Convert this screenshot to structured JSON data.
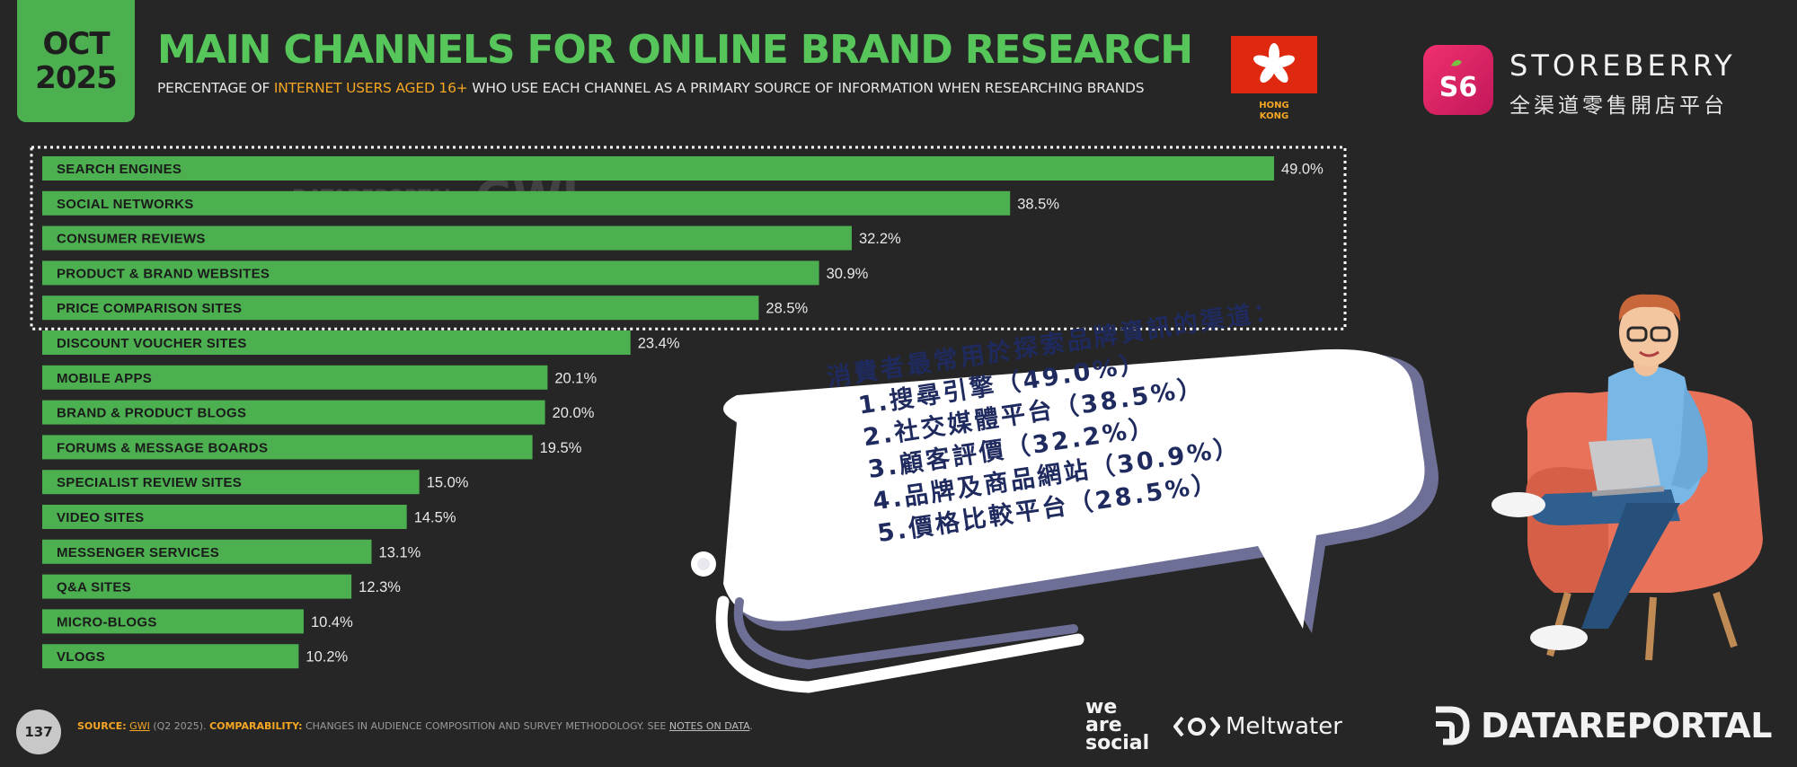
{
  "header": {
    "date_month": "OCT",
    "date_year": "2025",
    "title": "MAIN CHANNELS FOR ONLINE BRAND RESEARCH",
    "subtitle_pre": "PERCENTAGE OF ",
    "subtitle_highlight": "INTERNET USERS AGED 16+",
    "subtitle_post": " WHO USE EACH CHANNEL AS A PRIMARY SOURCE OF INFORMATION WHEN RESEARCHING BRANDS",
    "flag_label_line1": "HONG",
    "flag_label_line2": "KONG"
  },
  "brand": {
    "name": "STOREBERRY",
    "tagline": "全渠道零售開店平台",
    "logo_text": "S6"
  },
  "watermark": {
    "left": "DATAREPORTAL",
    "right": "GWI."
  },
  "chart_data": {
    "type": "bar",
    "orientation": "horizontal",
    "title": "MAIN CHANNELS FOR ONLINE BRAND RESEARCH",
    "categories": [
      "SEARCH ENGINES",
      "SOCIAL NETWORKS",
      "CONSUMER REVIEWS",
      "PRODUCT & BRAND WEBSITES",
      "PRICE COMPARISON SITES",
      "DISCOUNT VOUCHER SITES",
      "MOBILE APPS",
      "BRAND & PRODUCT BLOGS",
      "FORUMS & MESSAGE BOARDS",
      "SPECIALIST REVIEW SITES",
      "VIDEO SITES",
      "MESSENGER SERVICES",
      "Q&A SITES",
      "MICRO-BLOGS",
      "VLOGS"
    ],
    "values": [
      49.0,
      38.5,
      32.2,
      30.9,
      28.5,
      23.4,
      20.1,
      20.0,
      19.5,
      15.0,
      14.5,
      13.1,
      12.3,
      10.4,
      10.2
    ],
    "value_labels": [
      "49.0%",
      "38.5%",
      "32.2%",
      "30.9%",
      "28.5%",
      "23.4%",
      "20.1%",
      "20.0%",
      "19.5%",
      "15.0%",
      "14.5%",
      "13.1%",
      "12.3%",
      "10.4%",
      "10.2%"
    ],
    "highlighted_top": 5,
    "bar_color": "#4caf50",
    "highlight_box": "dotted white",
    "grid": false,
    "legend": "none"
  },
  "callout": {
    "heading": "消費者最常用於探索品牌資訊的渠道：",
    "items": [
      "1.搜尋引擎（49.0%）",
      "2.社交媒體平台（38.5%）",
      "3.顧客評價（32.2%）",
      "4.品牌及商品網站（30.9%）",
      "5.價格比較平台（28.5%）"
    ]
  },
  "footer": {
    "page_number": "137",
    "source_label": "SOURCE:",
    "source_link": "GWI",
    "source_text": " (Q2 2025). ",
    "comparability_label": "COMPARABILITY:",
    "comparability_text": " CHANGES IN AUDIENCE COMPOSITION AND SURVEY METHODOLOGY. SEE ",
    "notes_link": "NOTES ON DATA",
    "notes_end": ".",
    "partner1_l1": "we",
    "partner1_l2": "are",
    "partner1_l3": "social",
    "partner2": "Meltwater",
    "partner3": "DATAREPORTAL"
  },
  "colors": {
    "background": "#262626",
    "bar": "#4caf50",
    "title": "#56c65a",
    "accent": "#f5a623",
    "callout_text": "#1f2a5e",
    "flag": "#de2910",
    "brand": "#e91e63"
  },
  "icons": [
    "hong-kong-flag-icon",
    "storeberry-logo-icon",
    "meltwater-logo-icon",
    "datareportal-logo-icon",
    "person-with-laptop-illustration"
  ]
}
